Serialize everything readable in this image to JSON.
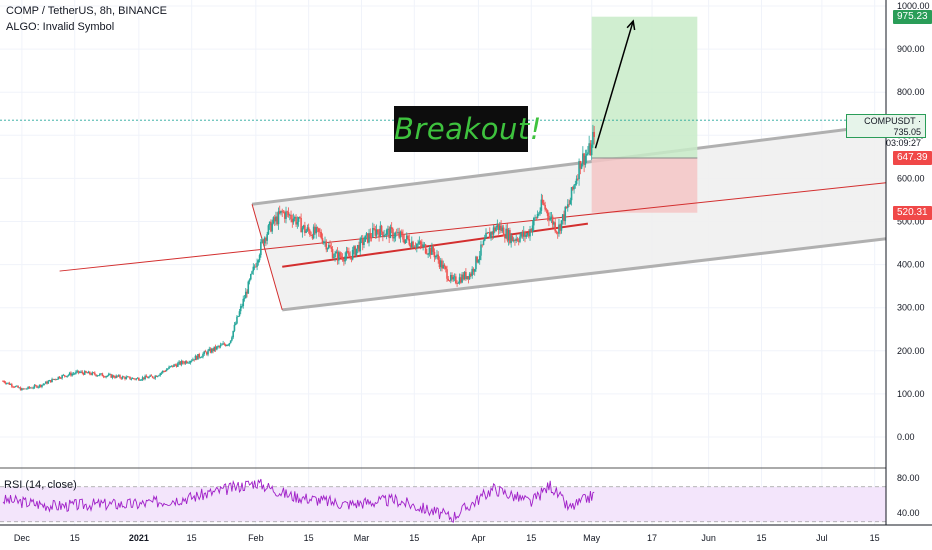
{
  "header": {
    "symbol_line": "COMP / TetherUS, 8h, BINANCE",
    "indicator_line": "ALGO: Invalid Symbol"
  },
  "annotation": {
    "text": "Breakout!"
  },
  "price_tags": {
    "target": {
      "label": "975.23",
      "color": "#2a9d58"
    },
    "entry": {
      "label": "647.39",
      "color": "#f04848"
    },
    "stop": {
      "label": "520.31",
      "color": "#f04848"
    },
    "symbol": "COMPUSDT",
    "last_price": "735.05",
    "countdown": "03:09:27"
  },
  "rsi_label": "RSI (14, close)",
  "colors": {
    "up": "#26a69a",
    "down": "#ef5350",
    "channel": "#b0b0b0",
    "channel_fill": "#efefef",
    "trend": "#d32f2f",
    "profit": "#c8ebc8",
    "loss": "#f5c6c6",
    "rsi": "#a020c8",
    "rsi_band": "#f3e5fb"
  },
  "chart_data": {
    "type": "candlestick",
    "price_axis": {
      "min": 0,
      "max": 1000,
      "ticks": [
        "1000.00",
        "900.00",
        "800.00",
        "700.00",
        "600.00",
        "500.00",
        "400.00",
        "300.00",
        "200.00",
        "100.00",
        "0.00"
      ]
    },
    "time_axis": [
      "Dec",
      "15",
      "2021",
      "15",
      "Feb",
      "15",
      "Mar",
      "15",
      "Apr",
      "15",
      "May",
      "17",
      "Jun",
      "15",
      "Jul",
      "15"
    ],
    "rsi_axis": {
      "ticks": [
        "80.00",
        "40.00"
      ],
      "overbought": 70,
      "oversold": 30
    },
    "price_path": [
      [
        "2020-11-26",
        130
      ],
      [
        "2020-12-01",
        110
      ],
      [
        "2020-12-06",
        120
      ],
      [
        "2020-12-11",
        140
      ],
      [
        "2020-12-16",
        150
      ],
      [
        "2020-12-21",
        145
      ],
      [
        "2020-12-26",
        140
      ],
      [
        "2020-12-31",
        135
      ],
      [
        "2021-01-05",
        140
      ],
      [
        "2021-01-10",
        165
      ],
      [
        "2021-01-15",
        180
      ],
      [
        "2021-01-20",
        200
      ],
      [
        "2021-01-25",
        220
      ],
      [
        "2021-01-30",
        350
      ],
      [
        "2021-02-03",
        460
      ],
      [
        "2021-02-05",
        490
      ],
      [
        "2021-02-08",
        520
      ],
      [
        "2021-02-11",
        510
      ],
      [
        "2021-02-14",
        480
      ],
      [
        "2021-02-18",
        470
      ],
      [
        "2021-02-22",
        420
      ],
      [
        "2021-02-26",
        420
      ],
      [
        "2021-03-01",
        450
      ],
      [
        "2021-03-05",
        480
      ],
      [
        "2021-03-10",
        470
      ],
      [
        "2021-03-15",
        450
      ],
      [
        "2021-03-20",
        430
      ],
      [
        "2021-03-25",
        360
      ],
      [
        "2021-03-30",
        380
      ],
      [
        "2021-04-03",
        460
      ],
      [
        "2021-04-06",
        490
      ],
      [
        "2021-04-10",
        460
      ],
      [
        "2021-04-14",
        470
      ],
      [
        "2021-04-18",
        540
      ],
      [
        "2021-04-22",
        480
      ],
      [
        "2021-04-25",
        540
      ],
      [
        "2021-04-28",
        640
      ],
      [
        "2021-05-01",
        670
      ],
      [
        "2021-05-02",
        735
      ]
    ],
    "rsi_path": [
      [
        "2020-11-26",
        55
      ],
      [
        "2020-12-10",
        48
      ],
      [
        "2020-12-20",
        50
      ],
      [
        "2021-01-01",
        50
      ],
      [
        "2021-01-15",
        58
      ],
      [
        "2021-02-01",
        75
      ],
      [
        "2021-02-10",
        60
      ],
      [
        "2021-02-25",
        50
      ],
      [
        "2021-03-10",
        55
      ],
      [
        "2021-03-25",
        35
      ],
      [
        "2021-04-05",
        68
      ],
      [
        "2021-04-15",
        52
      ],
      [
        "2021-04-20",
        72
      ],
      [
        "2021-04-25",
        45
      ],
      [
        "2021-05-02",
        62
      ]
    ],
    "channel": {
      "upper": [
        [
          "2021-01-31",
          540
        ],
        [
          "2021-07-18",
          725
        ]
      ],
      "lower": [
        [
          "2021-02-08",
          295
        ],
        [
          "2021-07-18",
          460
        ]
      ]
    },
    "trendlines": [
      [
        [
          "2020-12-11",
          385
        ],
        [
          "2021-07-18",
          590
        ]
      ],
      [
        [
          "2021-02-08",
          395
        ],
        [
          "2021-04-30",
          495
        ]
      ]
    ],
    "position": {
      "target": 975.23,
      "entry": 647.39,
      "stop": 520.31,
      "start": "2021-05-01",
      "end": "2021-05-29"
    },
    "forecast_arrow": [
      [
        "2021-05-02",
        670
      ],
      [
        "2021-05-12",
        965
      ]
    ],
    "last_price": 735.05
  }
}
